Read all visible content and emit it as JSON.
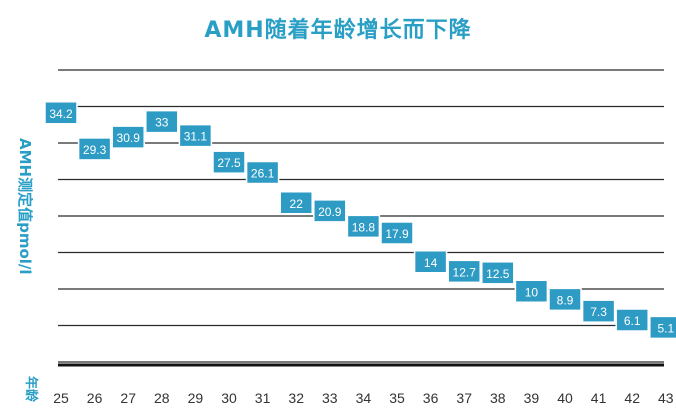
{
  "chart_data": {
    "type": "line",
    "title": "AMH随着年龄增长而下降",
    "ylabel": "AMH测定值pmol/l",
    "xlabel": "年龄",
    "x": [
      25,
      26,
      27,
      28,
      29,
      30,
      31,
      32,
      33,
      34,
      35,
      36,
      37,
      38,
      39,
      40,
      41,
      42,
      43
    ],
    "values": [
      34.2,
      29.3,
      30.9,
      33,
      31.1,
      27.5,
      26.1,
      22,
      20.9,
      18.8,
      17.9,
      14,
      12.7,
      12.5,
      10,
      8.9,
      7.3,
      6.1,
      5.1
    ],
    "value_labels": [
      "34.2",
      "29.3",
      "30.9",
      "33",
      "31.1",
      "27.5",
      "26.1",
      "22",
      "20.9",
      "18.8",
      "17.9",
      "14",
      "12.7",
      "12.5",
      "10",
      "8.9",
      "7.3",
      "6.1",
      "5.1"
    ],
    "ylim": [
      0,
      40
    ],
    "grid": true,
    "legend": "none",
    "colors": {
      "title": "#2a9fc6",
      "box": "#2e9bc5",
      "box_border": "#ffffff",
      "grid": "#2b2b2b",
      "axis_text": "#2a9fc6",
      "tick_text": "#333333"
    }
  }
}
